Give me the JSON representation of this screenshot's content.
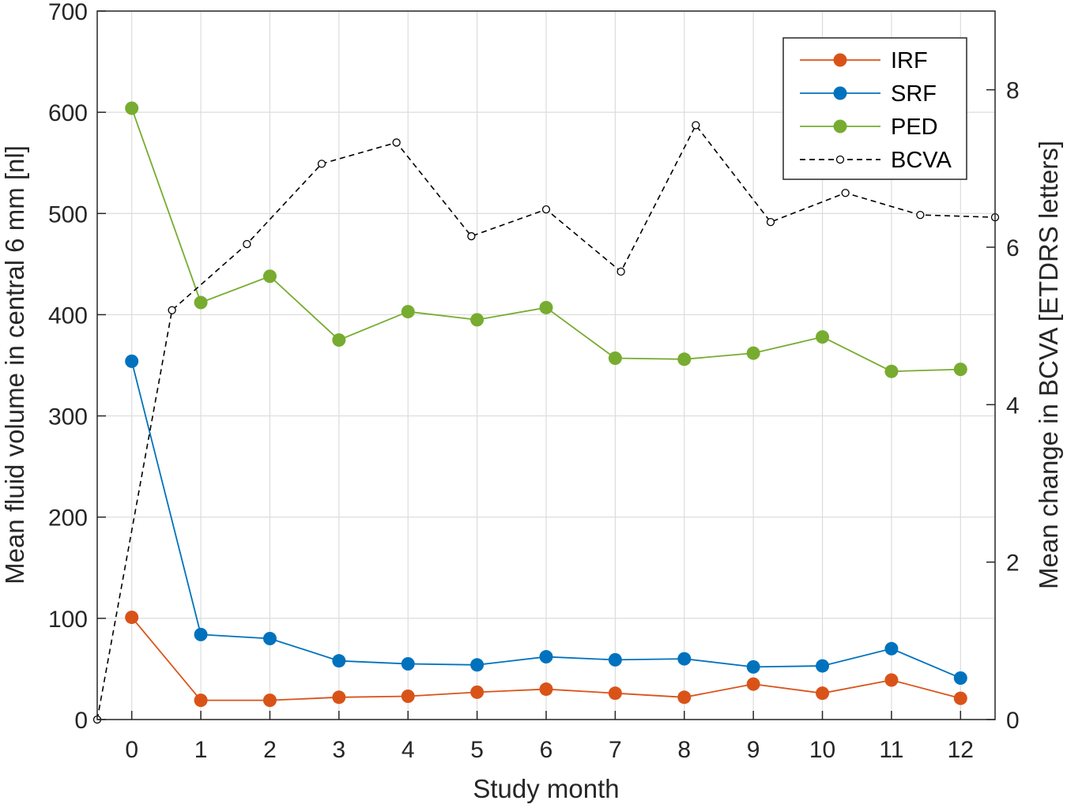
{
  "chart_data": {
    "type": "line",
    "title": "",
    "xlabel": "Study month",
    "ylabel": "Mean fluid volume in central 6 mm [nl]",
    "ylabel_right": "Mean change in BCVA [ETDRS letters]",
    "xlim": [
      -0.5,
      12.5
    ],
    "ylim": [
      0,
      700
    ],
    "ylim_right": [
      0,
      9
    ],
    "xticks": [
      0,
      1,
      2,
      3,
      4,
      5,
      6,
      7,
      8,
      9,
      10,
      11,
      12
    ],
    "yticks": [
      0,
      100,
      200,
      300,
      400,
      500,
      600,
      700
    ],
    "yticks_right": [
      0,
      2,
      4,
      6,
      8
    ],
    "grid": true,
    "legend_position": "top-right",
    "x": [
      0,
      1,
      2,
      3,
      4,
      5,
      6,
      7,
      8,
      9,
      10,
      11,
      12
    ],
    "series": [
      {
        "name": "IRF",
        "axis": "left",
        "color": "#D95319",
        "marker": "filled-circle",
        "line": "solid",
        "values": [
          101,
          19,
          19,
          22,
          23,
          27,
          30,
          26,
          22,
          35,
          26,
          39,
          21
        ]
      },
      {
        "name": "SRF",
        "axis": "left",
        "color": "#0072BD",
        "marker": "filled-circle",
        "line": "solid",
        "values": [
          354,
          84,
          80,
          58,
          55,
          54,
          62,
          59,
          60,
          52,
          53,
          70,
          41
        ]
      },
      {
        "name": "PED",
        "axis": "left",
        "color": "#77AC30",
        "marker": "filled-circle",
        "line": "solid",
        "values": [
          604,
          412,
          438,
          375,
          403,
          395,
          407,
          357,
          356,
          362,
          378,
          344,
          346
        ]
      },
      {
        "name": "BCVA",
        "axis": "right",
        "color": "#000000",
        "marker": "open-circle",
        "line": "dashed",
        "x": [
          -0.5,
          0.583,
          1.667,
          2.75,
          3.833,
          4.917,
          6.0,
          7.083,
          8.167,
          9.25,
          10.333,
          11.417,
          12.5
        ],
        "values": [
          0,
          5.2,
          6.04,
          7.06,
          7.33,
          6.14,
          6.48,
          5.69,
          7.55,
          6.32,
          6.69,
          6.41,
          6.38
        ]
      }
    ]
  }
}
